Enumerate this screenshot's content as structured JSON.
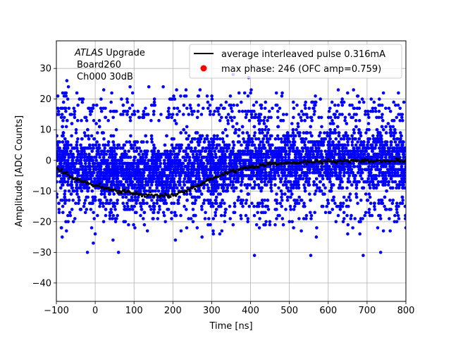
{
  "chart_data": {
    "type": "scatter",
    "title": "",
    "xlabel": "Time [ns]",
    "ylabel": "Amplitude [ADC Counts]",
    "xlim": [
      -100,
      800
    ],
    "ylim": [
      -46,
      39
    ],
    "xticks": [
      -100,
      0,
      100,
      200,
      300,
      400,
      500,
      600,
      700,
      800
    ],
    "yticks": [
      -40,
      -30,
      -20,
      -10,
      0,
      10,
      20,
      30
    ],
    "grid": true,
    "legend_position": "top-right",
    "annotation": {
      "atlas": "ATLAS",
      "upgrade": "Upgrade",
      "line2": "Board260",
      "line3": "Ch000 30dB"
    },
    "colors": {
      "samples": "#0000ff",
      "pulse": "#000000",
      "max_phase": "#ff0000",
      "grid": "#b0b0b0"
    },
    "legend": [
      {
        "label": "average interleaved pulse 0.316mA",
        "marker": "line",
        "color": "#000000"
      },
      {
        "label": "max phase: 246 (OFC amp=0.759)",
        "marker": "dot",
        "color": "#ff0000"
      }
    ],
    "series": [
      {
        "name": "average interleaved pulse 0.316mA",
        "type": "line",
        "x": [
          -100,
          -75,
          -50,
          -25,
          0,
          25,
          50,
          75,
          100,
          125,
          150,
          175,
          200,
          225,
          250,
          275,
          300,
          325,
          350,
          375,
          400,
          425,
          450,
          475,
          500,
          525,
          550,
          575,
          600,
          625,
          650,
          675,
          700,
          725,
          750,
          775,
          800
        ],
        "y": [
          -2.5,
          -4.5,
          -6.0,
          -7.2,
          -8.2,
          -9.0,
          -9.6,
          -10.2,
          -10.7,
          -11.1,
          -11.4,
          -11.5,
          -11.2,
          -10.3,
          -9.0,
          -7.5,
          -6.0,
          -4.8,
          -3.7,
          -2.9,
          -2.2,
          -1.7,
          -1.3,
          -1.0,
          -0.8,
          -0.6,
          -0.5,
          -0.4,
          -0.3,
          -0.3,
          -0.2,
          -0.2,
          -0.2,
          -0.2,
          -0.2,
          -0.2,
          -0.3
        ]
      },
      {
        "name": "max phase: 246 (OFC amp=0.759)",
        "type": "scatter",
        "x": [],
        "y": []
      },
      {
        "name": "samples",
        "type": "scatter",
        "band": {
          "x_range": [
            -100,
            800
          ],
          "core_sigma": 5,
          "dense_limit": 13
        },
        "outliers": {
          "x": [
            -85,
            -20,
            -5,
            0,
            60,
            110,
            175,
            230,
            270,
            355,
            395,
            410,
            440,
            500,
            555,
            620,
            690,
            735,
            780,
            800,
            -75,
            15,
            110,
            290,
            400,
            540,
            650,
            780
          ],
          "y": [
            -25,
            -30,
            -27,
            -24,
            -30,
            16,
            24,
            21,
            23,
            28,
            27,
            -31,
            -20,
            -20,
            -31,
            -20,
            -31,
            -30,
            -18,
            -22,
            22,
            20,
            16,
            19,
            22,
            18,
            22,
            18
          ]
        }
      }
    ]
  }
}
